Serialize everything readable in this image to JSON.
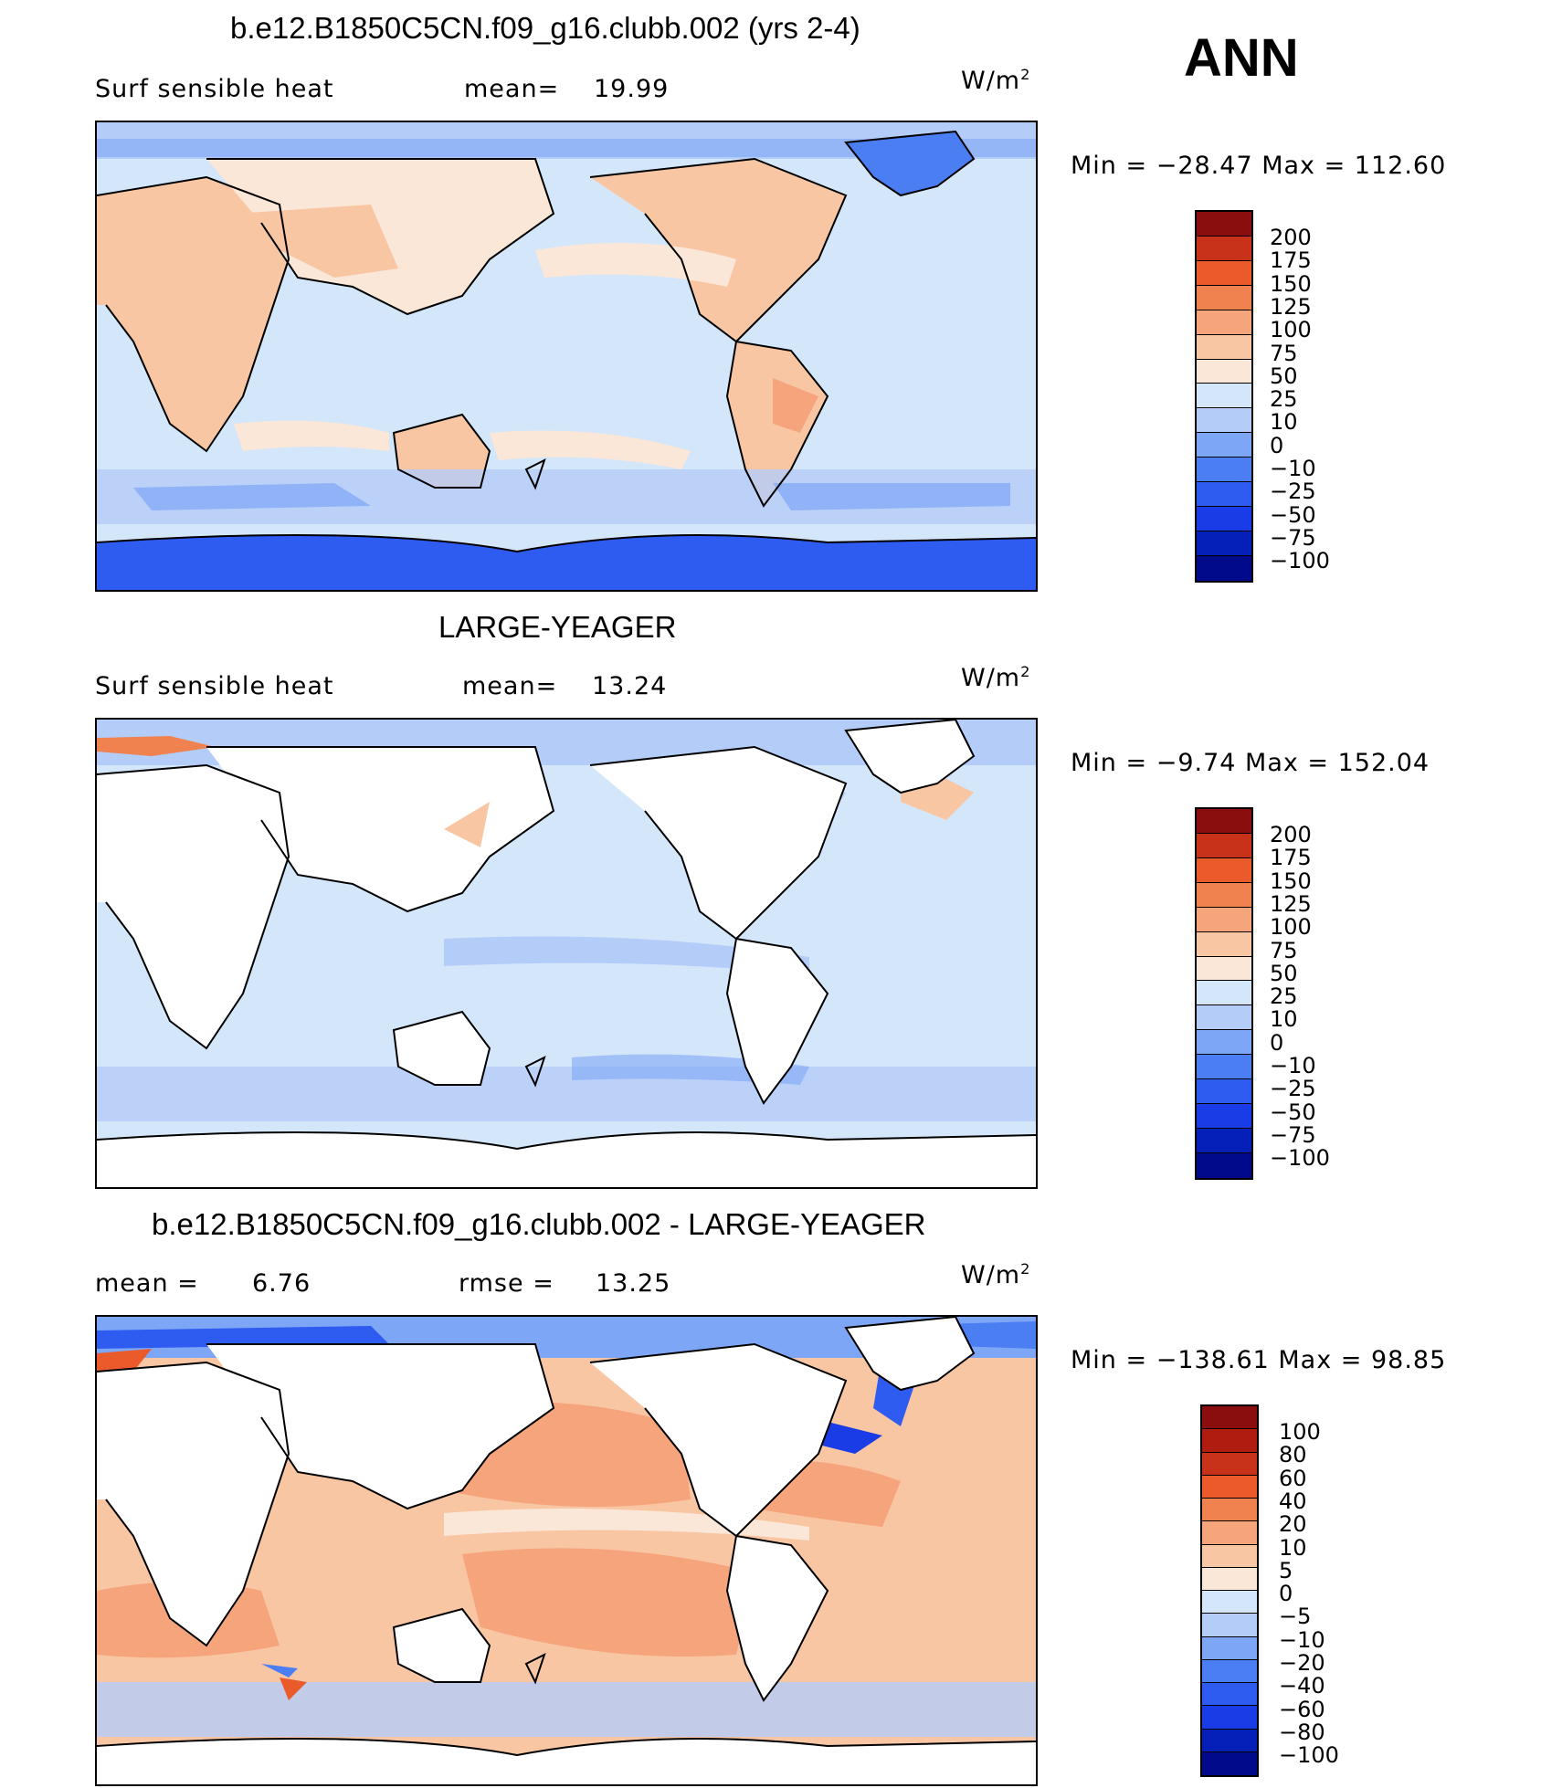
{
  "annual_label": "ANN",
  "units_base": "W/m",
  "units_exp": "2",
  "colors": {
    "abs_scale": [
      "#000a8a",
      "#0520b8",
      "#1a3ce6",
      "#2e5cf0",
      "#4a7ef2",
      "#7ea6f6",
      "#b4ccf8",
      "#d4e6fa",
      "#fbe7d8",
      "#f9c6a4",
      "#f5a47c",
      "#f08250",
      "#ea5a2a",
      "#c8321a",
      "#8a0e0e"
    ],
    "diff_scale": [
      "#000a8a",
      "#0520b8",
      "#1a3ce6",
      "#2e5cf0",
      "#4a7ef2",
      "#7ea6f6",
      "#b4ccf8",
      "#d4e6fa",
      "#fbe7d8",
      "#f9c6a4",
      "#f5a47c",
      "#f08250",
      "#ea5a2a",
      "#c8321a",
      "#b01c10",
      "#8a0e0e"
    ]
  },
  "panels": [
    {
      "title": "b.e12.B1850C5CN.f09_g16.clubb.002 (yrs 2-4)",
      "left_label": "Surf  sensible  heat",
      "stat1_label": "mean=",
      "stat1_value": "19.99",
      "minmax": "Min  =  −28.47  Max  =  112.60",
      "levels": [
        "200",
        "175",
        "150",
        "125",
        "100",
        "75",
        "50",
        "25",
        "10",
        "0",
        "−10",
        "−25",
        "−50",
        "−75",
        "−100"
      ]
    },
    {
      "title": "LARGE-YEAGER",
      "left_label": "Surf  sensible  heat",
      "stat1_label": "mean=",
      "stat1_value": "13.24",
      "minmax": "Min  =   −9.74  Max  =  152.04",
      "levels": [
        "200",
        "175",
        "150",
        "125",
        "100",
        "75",
        "50",
        "25",
        "10",
        "0",
        "−10",
        "−25",
        "−50",
        "−75",
        "−100"
      ]
    },
    {
      "title": "b.e12.B1850C5CN.f09_g16.clubb.002 - LARGE-YEAGER",
      "left_label": "mean  =",
      "stat1_value": "6.76",
      "stat2_label": "rmse  =",
      "stat2_value": "13.25",
      "minmax": "Min  = −138.61  Max  =   98.85",
      "levels": [
        "100",
        "80",
        "60",
        "40",
        "20",
        "10",
        "5",
        "0",
        "−5",
        "−10",
        "−20",
        "−40",
        "−60",
        "−80",
        "−100"
      ]
    }
  ]
}
